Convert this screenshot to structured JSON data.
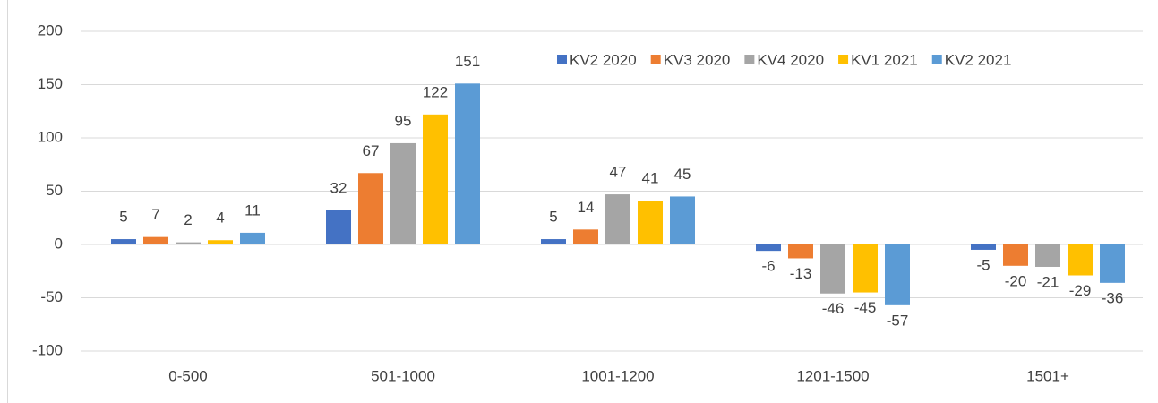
{
  "chart_data": {
    "type": "bar",
    "categories": [
      "0-500",
      "501-1000",
      "1001-1200",
      "1201-1500",
      "1501+"
    ],
    "series": [
      {
        "name": "KV2 2020",
        "color": "#4472c4",
        "values": [
          5,
          32,
          5,
          -6,
          -5
        ]
      },
      {
        "name": "KV3 2020",
        "color": "#ed7d31",
        "values": [
          7,
          67,
          14,
          -13,
          -20
        ]
      },
      {
        "name": "KV4 2020",
        "color": "#a5a5a5",
        "values": [
          2,
          95,
          47,
          -46,
          -21
        ]
      },
      {
        "name": "KV1 2021",
        "color": "#ffc000",
        "values": [
          4,
          122,
          41,
          -45,
          -29
        ]
      },
      {
        "name": "KV2 2021",
        "color": "#5b9bd5",
        "values": [
          11,
          151,
          45,
          -57,
          -36
        ]
      }
    ],
    "ylim": [
      -100,
      200
    ],
    "yticks": [
      -100,
      -50,
      0,
      50,
      100,
      150,
      200
    ],
    "grid": true,
    "legend": "top-right"
  }
}
